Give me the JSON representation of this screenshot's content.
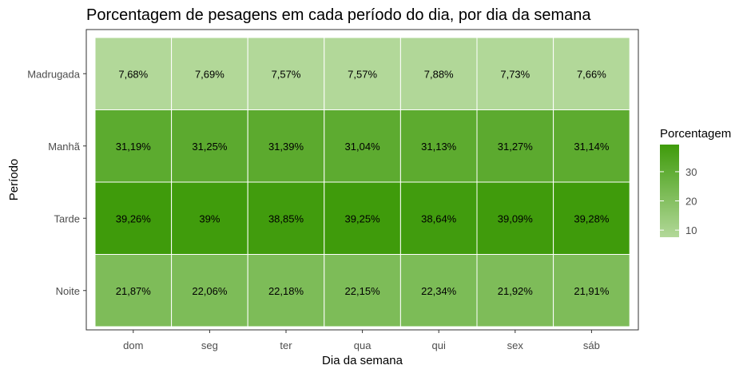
{
  "chart_data": {
    "type": "heatmap",
    "title": "Porcentagem de pesagens em cada período do dia, por dia da semana",
    "xlabel": "Dia da semana",
    "ylabel": "Período",
    "x_categories": [
      "dom",
      "seg",
      "ter",
      "qua",
      "qui",
      "sex",
      "sáb"
    ],
    "y_categories": [
      "Madrugada",
      "Manhã",
      "Tarde",
      "Noite"
    ],
    "values": [
      [
        7.68,
        7.69,
        7.57,
        7.57,
        7.88,
        7.73,
        7.66
      ],
      [
        31.19,
        31.25,
        31.39,
        31.04,
        31.13,
        31.27,
        31.14
      ],
      [
        39.26,
        39.0,
        38.85,
        39.25,
        38.64,
        39.09,
        39.28
      ],
      [
        21.87,
        22.06,
        22.18,
        22.15,
        22.34,
        21.92,
        21.91
      ]
    ],
    "labels": [
      [
        "7,68%",
        "7,69%",
        "7,57%",
        "7,57%",
        "7,88%",
        "7,73%",
        "7,66%"
      ],
      [
        "31,19%",
        "31,25%",
        "31,39%",
        "31,04%",
        "31,13%",
        "31,27%",
        "31,14%"
      ],
      [
        "39,26%",
        "39%",
        "38,85%",
        "39,25%",
        "38,64%",
        "39,09%",
        "39,28%"
      ],
      [
        "21,87%",
        "22,06%",
        "22,18%",
        "22,15%",
        "22,34%",
        "21,92%",
        "21,91%"
      ]
    ],
    "color_scale": {
      "low_color": "#b2d899",
      "high_color": "#3f9b0b",
      "min": 7.57,
      "max": 39.28
    },
    "legend": {
      "title": "Porcentagem",
      "ticks": [
        10,
        20,
        30
      ],
      "tick_labels": [
        "10",
        "20",
        "30"
      ],
      "placement": "right"
    }
  }
}
